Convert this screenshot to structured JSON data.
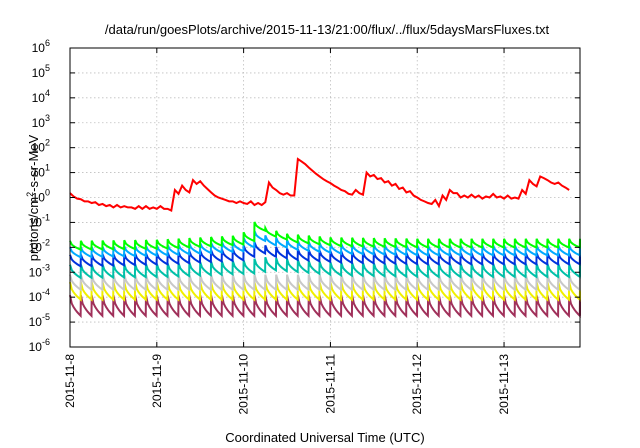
{
  "chart_data": {
    "type": "line",
    "title": "/data/run/goesPlots/archive/2015-11-13/21:00/flux/../flux/5daysMarsFluxes.txt",
    "xlabel": "Coordinated Universal Time (UTC)",
    "ylabel": {
      "base": "protons/cm",
      "sup": "2",
      "rest": "-s-sr-MeV"
    },
    "yscale": "log",
    "ylim": [
      1e-06,
      1000000.0
    ],
    "xlim": [
      "2015-11-08 00:00",
      "2015-11-13 21:00"
    ],
    "grid": true,
    "legend": "none",
    "x_tick_labels": [
      "2015-11-8",
      "2015-11-9",
      "2015-11-10",
      "2015-11-11",
      "2015-11-12",
      "2015-11-13"
    ],
    "x_tick_positions": [
      "2015-11-08 00:00",
      "2015-11-09 00:00",
      "2015-11-10 00:00",
      "2015-11-11 00:00",
      "2015-11-12 00:00",
      "2015-11-13 00:00"
    ],
    "y_tick_labels": [
      {
        "exp": -6,
        "base": "10",
        "sup": "-6"
      },
      {
        "exp": -5,
        "base": "10",
        "sup": "-5"
      },
      {
        "exp": -4,
        "base": "10",
        "sup": "-4"
      },
      {
        "exp": -3,
        "base": "10",
        "sup": "-3"
      },
      {
        "exp": -2,
        "base": "10",
        "sup": "-2"
      },
      {
        "exp": -1,
        "base": "10",
        "sup": "-1"
      },
      {
        "exp": 0,
        "base": "10",
        "sup": "0"
      },
      {
        "exp": 1,
        "base": "10",
        "sup": "1"
      },
      {
        "exp": 2,
        "base": "10",
        "sup": "2"
      },
      {
        "exp": 3,
        "base": "10",
        "sup": "3"
      },
      {
        "exp": 4,
        "base": "10",
        "sup": "4"
      },
      {
        "exp": 5,
        "base": "10",
        "sup": "5"
      },
      {
        "exp": 6,
        "base": "10",
        "sup": "6"
      }
    ],
    "series": [
      {
        "color": "#ff0000",
        "kind": "points",
        "points": [
          [
            "2015-11-08 00:00",
            1.5
          ],
          [
            "2015-11-08 01:00",
            1.1
          ],
          [
            "2015-11-08 02:00",
            0.9
          ],
          [
            "2015-11-08 03:00",
            0.85
          ],
          [
            "2015-11-08 04:00",
            0.7
          ],
          [
            "2015-11-08 05:00",
            0.7
          ],
          [
            "2015-11-08 06:00",
            0.6
          ],
          [
            "2015-11-08 07:00",
            0.65
          ],
          [
            "2015-11-08 08:00",
            0.5
          ],
          [
            "2015-11-08 09:00",
            0.55
          ],
          [
            "2015-11-08 10:00",
            0.45
          ],
          [
            "2015-11-08 11:00",
            0.5
          ],
          [
            "2015-11-08 12:00",
            0.4
          ],
          [
            "2015-11-08 13:00",
            0.5
          ],
          [
            "2015-11-08 14:00",
            0.4
          ],
          [
            "2015-11-08 15:00",
            0.45
          ],
          [
            "2015-11-08 16:00",
            0.4
          ],
          [
            "2015-11-08 17:00",
            0.4
          ],
          [
            "2015-11-08 18:00",
            0.35
          ],
          [
            "2015-11-08 19:00",
            0.45
          ],
          [
            "2015-11-08 20:00",
            0.35
          ],
          [
            "2015-11-08 21:00",
            0.45
          ],
          [
            "2015-11-08 22:00",
            0.35
          ],
          [
            "2015-11-08 23:00",
            0.4
          ],
          [
            "2015-11-09 00:00",
            0.35
          ],
          [
            "2015-11-09 01:00",
            0.45
          ],
          [
            "2015-11-09 02:00",
            0.35
          ],
          [
            "2015-11-09 03:00",
            0.35
          ],
          [
            "2015-11-09 04:00",
            0.3
          ],
          [
            "2015-11-09 05:00",
            2.0
          ],
          [
            "2015-11-09 06:00",
            1.4
          ],
          [
            "2015-11-09 07:00",
            3.0
          ],
          [
            "2015-11-09 08:00",
            2.0
          ],
          [
            "2015-11-09 09:00",
            1.6
          ],
          [
            "2015-11-09 10:00",
            5.0
          ],
          [
            "2015-11-09 11:00",
            3.5
          ],
          [
            "2015-11-09 12:00",
            4.5
          ],
          [
            "2015-11-09 13:00",
            3.0
          ],
          [
            "2015-11-09 14:00",
            2.2
          ],
          [
            "2015-11-09 15:00",
            1.6
          ],
          [
            "2015-11-09 16:00",
            1.2
          ],
          [
            "2015-11-09 17:00",
            1.0
          ],
          [
            "2015-11-09 18:00",
            0.9
          ],
          [
            "2015-11-09 19:00",
            0.8
          ],
          [
            "2015-11-09 20:00",
            0.7
          ],
          [
            "2015-11-09 21:00",
            0.7
          ],
          [
            "2015-11-09 22:00",
            0.6
          ],
          [
            "2015-11-09 23:00",
            0.7
          ],
          [
            "2015-11-10 00:00",
            0.6
          ],
          [
            "2015-11-10 01:00",
            0.55
          ],
          [
            "2015-11-10 02:00",
            0.7
          ],
          [
            "2015-11-10 03:00",
            0.5
          ],
          [
            "2015-11-10 04:00",
            0.6
          ],
          [
            "2015-11-10 05:00",
            0.5
          ],
          [
            "2015-11-10 06:00",
            0.65
          ],
          [
            "2015-11-10 07:00",
            4.0
          ],
          [
            "2015-11-10 08:00",
            2.5
          ],
          [
            "2015-11-10 09:00",
            2.0
          ],
          [
            "2015-11-10 10:00",
            1.5
          ],
          [
            "2015-11-10 11:00",
            1.3
          ],
          [
            "2015-11-10 12:00",
            1.5
          ],
          [
            "2015-11-10 13:00",
            1.2
          ],
          [
            "2015-11-10 14:00",
            1.2
          ],
          [
            "2015-11-10 15:00",
            35.0
          ],
          [
            "2015-11-10 16:00",
            28.0
          ],
          [
            "2015-11-10 17:00",
            22.0
          ],
          [
            "2015-11-10 18:00",
            16.0
          ],
          [
            "2015-11-10 19:00",
            12.0
          ],
          [
            "2015-11-10 20:00",
            9.0
          ],
          [
            "2015-11-10 21:00",
            7.0
          ],
          [
            "2015-11-10 22:00",
            5.5
          ],
          [
            "2015-11-10 23:00",
            4.5
          ],
          [
            "2015-11-11 00:00",
            3.8
          ],
          [
            "2015-11-11 01:00",
            3.0
          ],
          [
            "2015-11-11 02:00",
            2.5
          ],
          [
            "2015-11-11 03:00",
            2.0
          ],
          [
            "2015-11-11 04:00",
            1.8
          ],
          [
            "2015-11-11 05:00",
            1.4
          ],
          [
            "2015-11-11 06:00",
            1.3
          ],
          [
            "2015-11-11 07:00",
            2.0
          ],
          [
            "2015-11-11 08:00",
            1.5
          ],
          [
            "2015-11-11 09:00",
            1.3
          ],
          [
            "2015-11-11 10:00",
            10.0
          ],
          [
            "2015-11-11 11:00",
            7.0
          ],
          [
            "2015-11-11 12:00",
            8.0
          ],
          [
            "2015-11-11 13:00",
            5.5
          ],
          [
            "2015-11-11 14:00",
            6.0
          ],
          [
            "2015-11-11 15:00",
            4.0
          ],
          [
            "2015-11-11 16:00",
            4.5
          ],
          [
            "2015-11-11 17:00",
            3.0
          ],
          [
            "2015-11-11 18:00",
            3.5
          ],
          [
            "2015-11-11 19:00",
            2.2
          ],
          [
            "2015-11-11 20:00",
            2.5
          ],
          [
            "2015-11-11 21:00",
            1.6
          ],
          [
            "2015-11-11 22:00",
            1.8
          ],
          [
            "2015-11-11 23:00",
            1.2
          ],
          [
            "2015-11-12 00:00",
            1.0
          ],
          [
            "2015-11-12 01:00",
            0.8
          ],
          [
            "2015-11-12 02:00",
            0.7
          ],
          [
            "2015-11-12 03:00",
            0.6
          ],
          [
            "2015-11-12 04:00",
            0.55
          ],
          [
            "2015-11-12 05:00",
            0.8
          ],
          [
            "2015-11-12 06:00",
            0.45
          ],
          [
            "2015-11-12 07:00",
            1.2
          ],
          [
            "2015-11-12 08:00",
            0.8
          ],
          [
            "2015-11-12 09:00",
            2.0
          ],
          [
            "2015-11-12 10:00",
            1.5
          ],
          [
            "2015-11-12 11:00",
            1.5
          ],
          [
            "2015-11-12 12:00",
            1.0
          ],
          [
            "2015-11-12 13:00",
            1.2
          ],
          [
            "2015-11-12 14:00",
            1.0
          ],
          [
            "2015-11-12 15:00",
            1.3
          ],
          [
            "2015-11-12 16:00",
            1.0
          ],
          [
            "2015-11-12 17:00",
            1.2
          ],
          [
            "2015-11-12 18:00",
            0.9
          ],
          [
            "2015-11-12 19:00",
            1.1
          ],
          [
            "2015-11-12 20:00",
            1.0
          ],
          [
            "2015-11-12 21:00",
            1.4
          ],
          [
            "2015-11-12 22:00",
            1.0
          ],
          [
            "2015-11-12 23:00",
            1.1
          ],
          [
            "2015-11-13 00:00",
            0.9
          ],
          [
            "2015-11-13 01:00",
            1.2
          ],
          [
            "2015-11-13 02:00",
            0.9
          ],
          [
            "2015-11-13 03:00",
            1.0
          ],
          [
            "2015-11-13 04:00",
            0.9
          ],
          [
            "2015-11-13 05:00",
            2.0
          ],
          [
            "2015-11-13 06:00",
            1.4
          ],
          [
            "2015-11-13 07:00",
            5.0
          ],
          [
            "2015-11-13 08:00",
            3.5
          ],
          [
            "2015-11-13 09:00",
            2.8
          ],
          [
            "2015-11-13 10:00",
            7.0
          ],
          [
            "2015-11-13 11:00",
            6.0
          ],
          [
            "2015-11-13 12:00",
            5.0
          ],
          [
            "2015-11-13 13:00",
            4.0
          ],
          [
            "2015-11-13 14:00",
            3.5
          ],
          [
            "2015-11-13 15:00",
            4.0
          ],
          [
            "2015-11-13 16:00",
            3.0
          ],
          [
            "2015-11-13 17:00",
            2.5
          ],
          [
            "2015-11-13 18:00",
            2.0
          ]
        ]
      },
      {
        "color": "#00ff00",
        "kind": "sawtooth",
        "start": "2015-11-08 00:00",
        "end": "2015-11-13 21:00",
        "period_hours": 3,
        "peak": [
          [
            "2015-11-08 00:00",
            0.018
          ],
          [
            "2015-11-09 00:00",
            0.02
          ],
          [
            "2015-11-09 23:00",
            0.03
          ],
          [
            "2015-11-10 00:00",
            0.04
          ],
          [
            "2015-11-10 01:00",
            0.15
          ],
          [
            "2015-11-10 06:00",
            0.06
          ],
          [
            "2015-11-10 12:00",
            0.035
          ],
          [
            "2015-11-11 00:00",
            0.025
          ],
          [
            "2015-11-12 00:00",
            0.022
          ],
          [
            "2015-11-13 21:00",
            0.022
          ]
        ],
        "trough_ratio": 0.45
      },
      {
        "color": "#00aaff",
        "kind": "sawtooth",
        "start": "2015-11-08 00:00",
        "end": "2015-11-13 21:00",
        "period_hours": 3,
        "peak": [
          [
            "2015-11-08 00:00",
            0.01
          ],
          [
            "2015-11-09 00:00",
            0.012
          ],
          [
            "2015-11-09 23:00",
            0.018
          ],
          [
            "2015-11-10 00:00",
            0.025
          ],
          [
            "2015-11-10 01:00",
            0.06
          ],
          [
            "2015-11-10 06:00",
            0.03
          ],
          [
            "2015-11-10 12:00",
            0.02
          ],
          [
            "2015-11-11 00:00",
            0.014
          ],
          [
            "2015-11-12 00:00",
            0.012
          ],
          [
            "2015-11-13 21:00",
            0.012
          ]
        ],
        "trough_ratio": 0.4
      },
      {
        "color": "#0033dd",
        "kind": "sawtooth",
        "start": "2015-11-08 00:00",
        "end": "2015-11-13 21:00",
        "period_hours": 3,
        "peak": [
          [
            "2015-11-08 00:00",
            0.005
          ],
          [
            "2015-11-09 00:00",
            0.006
          ],
          [
            "2015-11-09 23:00",
            0.009
          ],
          [
            "2015-11-10 00:00",
            0.012
          ],
          [
            "2015-11-10 01:00",
            0.02
          ],
          [
            "2015-11-10 06:00",
            0.012
          ],
          [
            "2015-11-10 12:00",
            0.009
          ],
          [
            "2015-11-11 00:00",
            0.007
          ],
          [
            "2015-11-12 00:00",
            0.006
          ],
          [
            "2015-11-13 21:00",
            0.006
          ]
        ],
        "trough_ratio": 0.35
      },
      {
        "color": "#00c0a8",
        "kind": "sawtooth",
        "start": "2015-11-08 00:00",
        "end": "2015-11-13 21:00",
        "period_hours": 3,
        "peak": [
          [
            "2015-11-08 00:00",
            0.002
          ],
          [
            "2015-11-09 00:00",
            0.0022
          ],
          [
            "2015-11-10 00:00",
            0.003
          ],
          [
            "2015-11-10 06:00",
            0.004
          ],
          [
            "2015-11-11 00:00",
            0.0025
          ],
          [
            "2015-11-12 00:00",
            0.0022
          ],
          [
            "2015-11-13 21:00",
            0.0022
          ]
        ],
        "trough_ratio": 0.3
      },
      {
        "color": "#c8c8c8",
        "kind": "sawtooth",
        "start": "2015-11-08 00:00",
        "end": "2015-11-13 21:00",
        "period_hours": 3,
        "peak": [
          [
            "2015-11-08 00:00",
            0.0008
          ],
          [
            "2015-11-13 21:00",
            0.0008
          ]
        ],
        "trough_ratio": 0.25
      },
      {
        "color": "#f0f000",
        "kind": "sawtooth",
        "start": "2015-11-08 00:00",
        "end": "2015-11-13 21:00",
        "period_hours": 3,
        "peak": [
          [
            "2015-11-08 00:00",
            0.0004
          ],
          [
            "2015-11-13 21:00",
            0.0004
          ]
        ],
        "trough_ratio": 0.2
      },
      {
        "color": "#a0305a",
        "kind": "sawtooth",
        "start": "2015-11-08 00:00",
        "end": "2015-11-13 21:00",
        "period_hours": 3,
        "peak": [
          [
            "2015-11-08 00:00",
            0.00012
          ],
          [
            "2015-11-13 21:00",
            0.00012
          ]
        ],
        "trough_ratio": 0.15
      }
    ]
  }
}
